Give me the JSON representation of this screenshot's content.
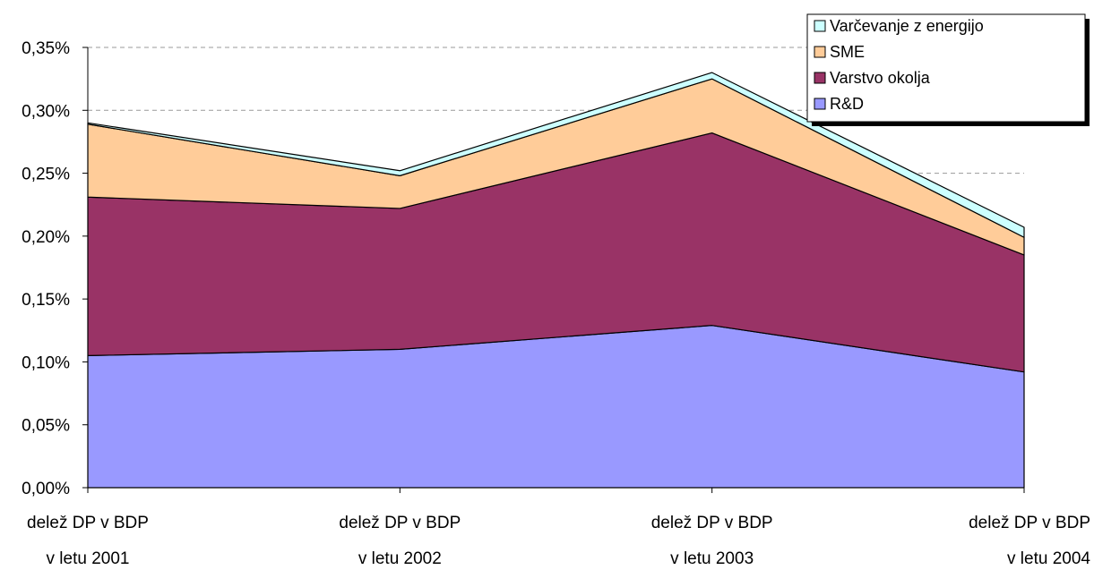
{
  "chart_data": {
    "type": "area",
    "stacked": true,
    "categories": [
      [
        "delež DP v BDP",
        "v letu 2001"
      ],
      [
        "delež DP v BDP",
        "v letu 2002"
      ],
      [
        "delež DP v BDP",
        "v letu 2003"
      ],
      [
        "delež DP v BDP",
        "v letu 2004"
      ]
    ],
    "series": [
      {
        "name": "R&D",
        "color": "#9999ff",
        "values": [
          0.105,
          0.11,
          0.129,
          0.092
        ]
      },
      {
        "name": "Varstvo okolja",
        "color": "#993366",
        "values": [
          0.126,
          0.112,
          0.153,
          0.093
        ]
      },
      {
        "name": "SME",
        "color": "#ffcc99",
        "values": [
          0.058,
          0.026,
          0.043,
          0.014
        ]
      },
      {
        "name": "Varčevanje z energijo",
        "color": "#ccffff",
        "values": [
          0.001,
          0.004,
          0.005,
          0.008
        ]
      }
    ],
    "legend_order": [
      "Varčevanje z energijo",
      "SME",
      "Varstvo okolja",
      "R&D"
    ],
    "ylim": [
      0,
      0.35
    ],
    "yticks": [
      0,
      0.05,
      0.1,
      0.15,
      0.2,
      0.25,
      0.3,
      0.35
    ],
    "ytick_labels": [
      "0,00%",
      "0,05%",
      "0,10%",
      "0,15%",
      "0,20%",
      "0,25%",
      "0,30%",
      "0,35%"
    ],
    "gridlines": [
      0.25,
      0.3,
      0.35
    ],
    "grid_style": "dashed",
    "legend_position": "top-right",
    "title": "",
    "xlabel": "",
    "ylabel": ""
  }
}
